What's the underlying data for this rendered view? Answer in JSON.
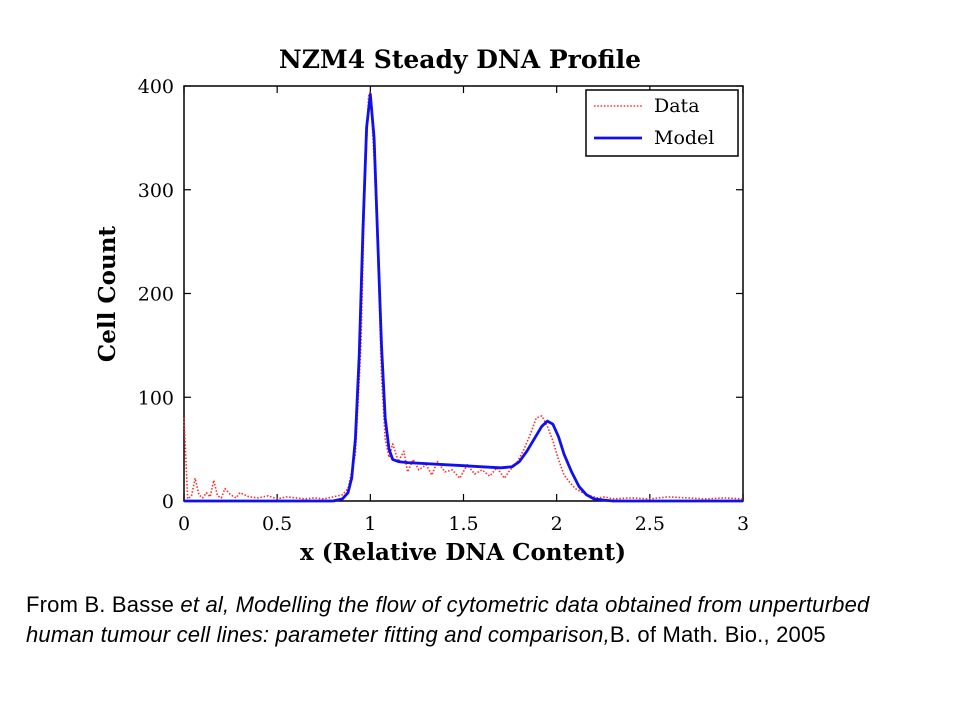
{
  "chart_data": {
    "type": "line",
    "title": "NZM4 Steady DNA Profile",
    "xlabel": "x (Relative DNA Content)",
    "ylabel": "Cell Count",
    "xlim": [
      0,
      3
    ],
    "ylim": [
      0,
      400
    ],
    "xticks": [
      "0",
      "0.5",
      "1",
      "1.5",
      "2",
      "2.5",
      "3"
    ],
    "yticks": [
      "0",
      "100",
      "200",
      "300",
      "400"
    ],
    "legend_position": "top-right",
    "series": [
      {
        "name": "Data",
        "color": "#ff2a2a",
        "style": "dotted",
        "x": [
          0.0,
          0.02,
          0.04,
          0.06,
          0.08,
          0.1,
          0.12,
          0.14,
          0.16,
          0.18,
          0.2,
          0.22,
          0.25,
          0.28,
          0.3,
          0.35,
          0.4,
          0.45,
          0.5,
          0.55,
          0.6,
          0.65,
          0.7,
          0.75,
          0.8,
          0.85,
          0.88,
          0.92,
          0.95,
          0.97,
          0.99,
          1.0,
          1.02,
          1.04,
          1.06,
          1.08,
          1.1,
          1.12,
          1.15,
          1.18,
          1.2,
          1.23,
          1.26,
          1.3,
          1.33,
          1.36,
          1.4,
          1.44,
          1.48,
          1.52,
          1.56,
          1.6,
          1.64,
          1.68,
          1.72,
          1.75,
          1.78,
          1.82,
          1.86,
          1.89,
          1.92,
          1.95,
          1.98,
          2.01,
          2.04,
          2.07,
          2.1,
          2.14,
          2.18,
          2.22,
          2.26,
          2.3,
          2.4,
          2.5,
          2.6,
          2.7,
          2.8,
          2.9,
          3.0
        ],
        "y": [
          80,
          2,
          5,
          22,
          6,
          3,
          8,
          4,
          20,
          5,
          3,
          12,
          6,
          3,
          8,
          4,
          3,
          5,
          2,
          4,
          3,
          2,
          3,
          2,
          4,
          6,
          12,
          45,
          150,
          300,
          390,
          395,
          330,
          240,
          120,
          60,
          42,
          55,
          38,
          48,
          28,
          40,
          30,
          35,
          25,
          38,
          28,
          30,
          22,
          35,
          26,
          30,
          24,
          32,
          22,
          30,
          35,
          48,
          65,
          80,
          82,
          72,
          58,
          40,
          25,
          18,
          12,
          8,
          5,
          3,
          4,
          2,
          3,
          2,
          4,
          3,
          2,
          3,
          2
        ]
      },
      {
        "name": "Model",
        "color": "#1010ee",
        "style": "solid",
        "x": [
          0.0,
          0.8,
          0.85,
          0.88,
          0.9,
          0.92,
          0.94,
          0.96,
          0.98,
          1.0,
          1.02,
          1.04,
          1.06,
          1.08,
          1.1,
          1.12,
          1.15,
          1.2,
          1.3,
          1.4,
          1.5,
          1.6,
          1.7,
          1.76,
          1.8,
          1.84,
          1.88,
          1.92,
          1.95,
          1.98,
          2.01,
          2.04,
          2.08,
          2.12,
          2.16,
          2.2,
          2.25,
          2.3,
          2.5,
          3.0
        ],
        "y": [
          0,
          0,
          2,
          8,
          22,
          60,
          140,
          260,
          360,
          392,
          350,
          250,
          150,
          80,
          50,
          40,
          38,
          37,
          36,
          35,
          34,
          33,
          32,
          33,
          38,
          48,
          60,
          72,
          77,
          74,
          62,
          45,
          28,
          14,
          6,
          2,
          1,
          0,
          0,
          0
        ]
      }
    ]
  },
  "caption": {
    "prefix": "From B. Basse ",
    "et_al": "et al, Modelling the flow of cytometric data obtained from unperturbed human tumour cell lines: parameter fitting and comparison,",
    "suffix": "B. of Math. Bio., 2005"
  }
}
